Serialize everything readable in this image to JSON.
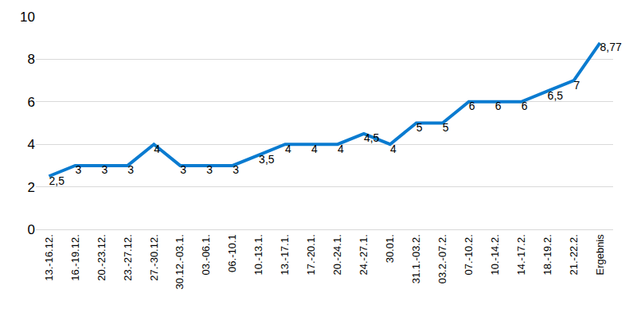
{
  "chart_data": {
    "type": "line",
    "categories": [
      "13.-16.12.",
      "16.-19.12.",
      "20.-23.12.",
      "23.-27.12.",
      "27.-30.12.",
      "30.12.-03.1.",
      "03.-06.1.",
      "06.-10.1",
      "10.-13.1.",
      "13.-17.1.",
      "17.-20.1.",
      "20.-24.1.",
      "24.-27.1.",
      "30.01.",
      "31.1.-03.2.",
      "03.2.-07.2.",
      "07.-10.2.",
      "10.-14.2.",
      "14.-17.2.",
      "18.-19.2.",
      "21.-22.2.",
      "Ergebnis"
    ],
    "values": [
      2.5,
      3,
      3,
      3,
      4,
      3,
      3,
      3,
      3.5,
      4,
      4,
      4,
      4.5,
      4,
      5,
      5,
      6,
      6,
      6,
      6.5,
      7,
      8.77
    ],
    "value_labels": [
      "2,5",
      "3",
      "3",
      "3",
      "4",
      "3",
      "3",
      "3",
      "3,5",
      "4",
      "4",
      "4",
      "4,5",
      "4",
      "5",
      "5",
      "6",
      "6",
      "6",
      "6,5",
      "7",
      "8,77"
    ],
    "color": "#0a7bd0",
    "ylim": [
      0,
      10
    ],
    "yticks": [
      0,
      2,
      4,
      6,
      8,
      10
    ],
    "grid": true,
    "data_labels": true
  }
}
